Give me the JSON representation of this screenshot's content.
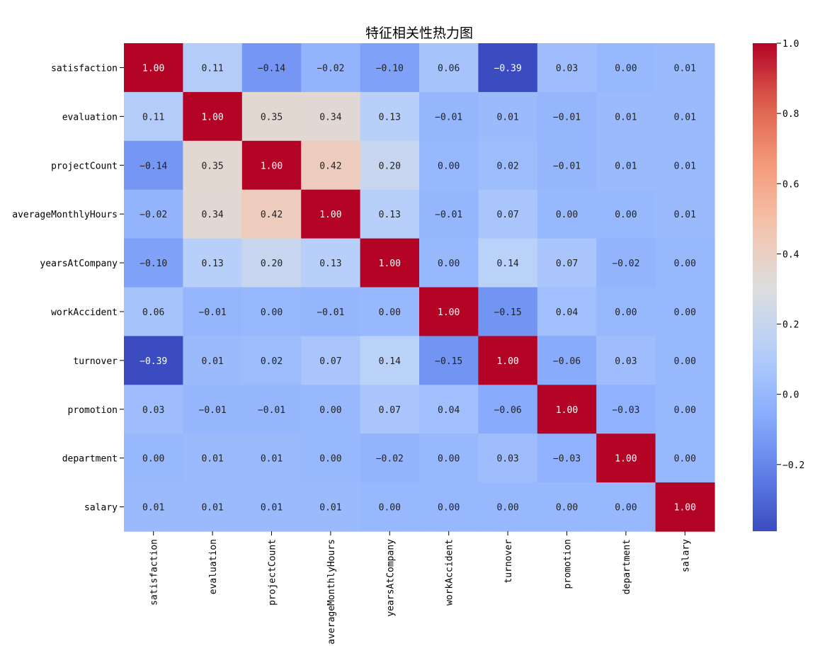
{
  "chart_data": {
    "type": "heatmap",
    "title": "特征相关性热力图",
    "xlabel": "",
    "ylabel": "",
    "row_labels": [
      "satisfaction",
      "evaluation",
      "projectCount",
      "averageMonthlyHours",
      "yearsAtCompany",
      "workAccident",
      "turnover",
      "promotion",
      "department",
      "salary"
    ],
    "col_labels": [
      "satisfaction",
      "evaluation",
      "projectCount",
      "averageMonthlyHours",
      "yearsAtCompany",
      "workAccident",
      "turnover",
      "promotion",
      "department",
      "salary"
    ],
    "values": [
      [
        1.0,
        0.11,
        -0.14,
        -0.02,
        -0.1,
        0.06,
        -0.39,
        0.03,
        0.0,
        0.01
      ],
      [
        0.11,
        1.0,
        0.35,
        0.34,
        0.13,
        -0.01,
        0.01,
        -0.01,
        0.01,
        0.01
      ],
      [
        -0.14,
        0.35,
        1.0,
        0.42,
        0.2,
        -0.0,
        0.02,
        -0.01,
        0.01,
        0.01
      ],
      [
        -0.02,
        0.34,
        0.42,
        1.0,
        0.13,
        -0.01,
        0.07,
        -0.0,
        0.0,
        0.01
      ],
      [
        -0.1,
        0.13,
        0.2,
        0.13,
        1.0,
        0.0,
        0.14,
        0.07,
        -0.02,
        -0.0
      ],
      [
        0.06,
        -0.01,
        -0.0,
        -0.01,
        0.0,
        1.0,
        -0.15,
        0.04,
        0.0,
        -0.0
      ],
      [
        -0.39,
        0.01,
        0.02,
        0.07,
        0.14,
        -0.15,
        1.0,
        -0.06,
        0.03,
        -0.0
      ],
      [
        0.03,
        -0.01,
        -0.01,
        -0.0,
        0.07,
        0.04,
        -0.06,
        1.0,
        -0.03,
        -0.0
      ],
      [
        0.0,
        0.01,
        0.01,
        0.0,
        -0.02,
        0.0,
        0.03,
        -0.03,
        1.0,
        0.0
      ],
      [
        0.01,
        0.01,
        0.01,
        0.01,
        -0.0,
        -0.0,
        -0.0,
        -0.0,
        0.0,
        1.0
      ]
    ],
    "colormap": "coolwarm",
    "vmin": -0.39,
    "vmax": 1.0,
    "annotation_format": "0.00",
    "colorbar": {
      "ticks": [
        1.0,
        0.8,
        0.6,
        0.4,
        0.2,
        0.0,
        -0.2
      ],
      "tick_labels": [
        "1.0",
        "0.8",
        "0.6",
        "0.4",
        "0.2",
        "0.0",
        "−0.2"
      ],
      "placement": "right"
    }
  }
}
